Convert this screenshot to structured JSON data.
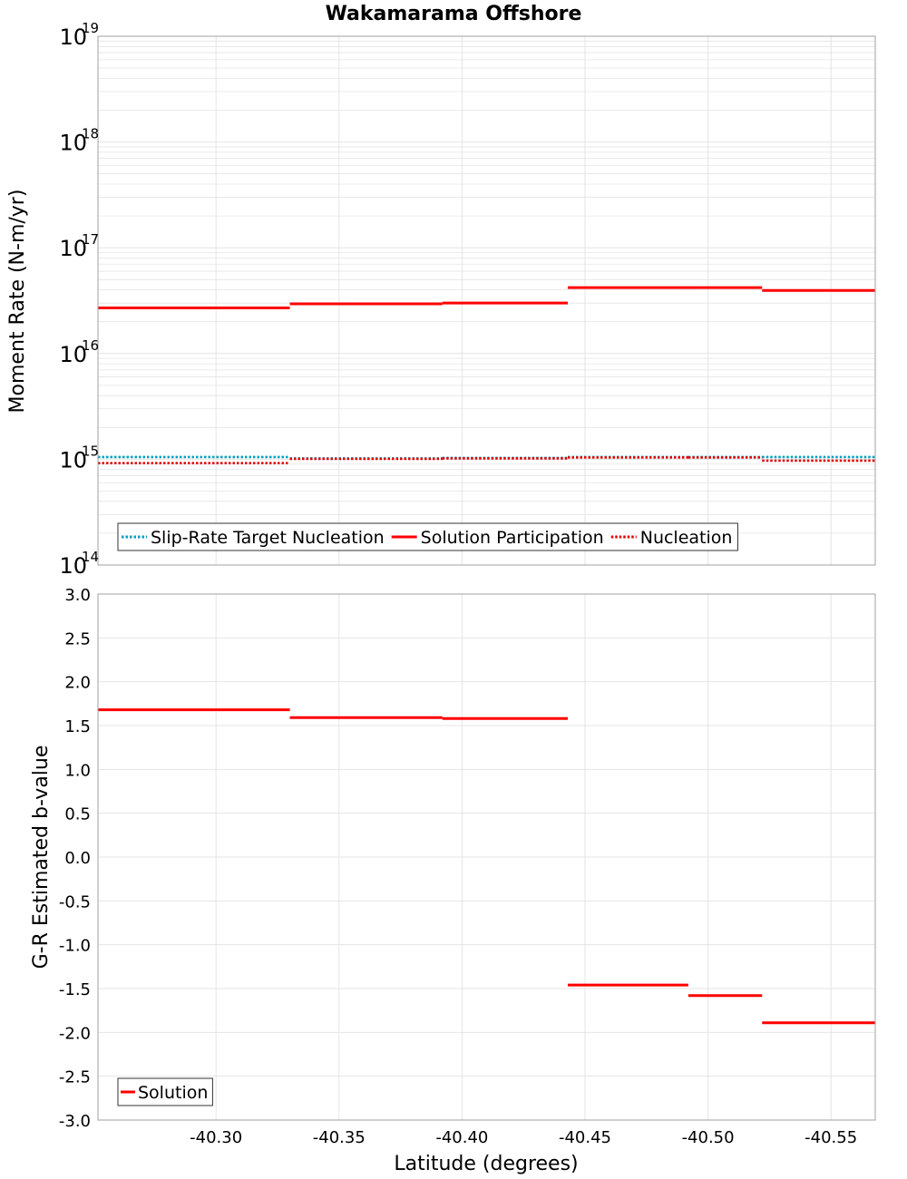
{
  "colors": {
    "solution": "#ff0000",
    "target": "#00a0c0",
    "nucleation": "#e00000",
    "grid": "#e4e4e4",
    "frame": "#a0a0a0"
  },
  "chart_data": [
    {
      "type": "line",
      "title": "Wakamarama Offshore",
      "ylabel": "Moment Rate (N-m/yr)",
      "yscale": "log",
      "ylim": [
        100000000000000.0,
        1e+19
      ],
      "xlim": [
        -40.252,
        -40.568
      ],
      "x_reversed": true,
      "y_ticks": [
        {
          "value": 1e+19,
          "base": "10",
          "exp": "19"
        },
        {
          "value": 1e+18,
          "base": "10",
          "exp": "18"
        },
        {
          "value": 1e+17,
          "base": "10",
          "exp": "17"
        },
        {
          "value": 1e+16,
          "base": "10",
          "exp": "16"
        },
        {
          "value": 1000000000000000.0,
          "base": "10",
          "exp": "15"
        },
        {
          "value": 100000000000000.0,
          "base": "10",
          "exp": "14"
        }
      ],
      "grid": true,
      "legend_position": "bottom-left",
      "series": [
        {
          "name": "Slip-Rate Target Nucleation",
          "style": "dotted",
          "color": "#00a0c0",
          "segments": [
            {
              "x0": -40.252,
              "x1": -40.33,
              "y": 1050000000000000.0
            },
            {
              "x0": -40.33,
              "x1": -40.392,
              "y": 1020000000000000.0
            },
            {
              "x0": -40.392,
              "x1": -40.443,
              "y": 1030000000000000.0
            },
            {
              "x0": -40.443,
              "x1": -40.492,
              "y": 1050000000000000.0
            },
            {
              "x0": -40.492,
              "x1": -40.522,
              "y": 1050000000000000.0
            },
            {
              "x0": -40.522,
              "x1": -40.568,
              "y": 1050000000000000.0
            }
          ]
        },
        {
          "name": "Solution Participation",
          "style": "solid",
          "color": "#ff0000",
          "segments": [
            {
              "x0": -40.252,
              "x1": -40.33,
              "y": 2.7e+16
            },
            {
              "x0": -40.33,
              "x1": -40.392,
              "y": 2.95e+16
            },
            {
              "x0": -40.392,
              "x1": -40.443,
              "y": 3e+16
            },
            {
              "x0": -40.443,
              "x1": -40.492,
              "y": 4.2e+16
            },
            {
              "x0": -40.492,
              "x1": -40.522,
              "y": 4.2e+16
            },
            {
              "x0": -40.522,
              "x1": -40.568,
              "y": 3.95e+16
            }
          ]
        },
        {
          "name": "Nucleation",
          "style": "dotted",
          "color": "#e00000",
          "segments": [
            {
              "x0": -40.252,
              "x1": -40.33,
              "y": 920000000000000.0
            },
            {
              "x0": -40.33,
              "x1": -40.392,
              "y": 1010000000000000.0
            },
            {
              "x0": -40.392,
              "x1": -40.443,
              "y": 1020000000000000.0
            },
            {
              "x0": -40.443,
              "x1": -40.492,
              "y": 1040000000000000.0
            },
            {
              "x0": -40.492,
              "x1": -40.522,
              "y": 1040000000000000.0
            },
            {
              "x0": -40.522,
              "x1": -40.568,
              "y": 970000000000000.0
            }
          ]
        }
      ]
    },
    {
      "type": "line",
      "xlabel": "Latitude (degrees)",
      "ylabel": "G-R Estimated b-value",
      "ylim": [
        -3.0,
        3.0
      ],
      "xlim": [
        -40.252,
        -40.568
      ],
      "x_reversed": true,
      "x_ticks": [
        "-40.30",
        "-40.35",
        "-40.40",
        "-40.45",
        "-40.50",
        "-40.55"
      ],
      "y_ticks": [
        "3.0",
        "2.5",
        "2.0",
        "1.5",
        "1.0",
        "0.5",
        "0.0",
        "-0.5",
        "-1.0",
        "-1.5",
        "-2.0",
        "-2.5",
        "-3.0"
      ],
      "grid": true,
      "legend_position": "bottom-left",
      "series": [
        {
          "name": "Solution",
          "style": "solid",
          "color": "#ff0000",
          "segments": [
            {
              "x0": -40.252,
              "x1": -40.33,
              "y": 1.68
            },
            {
              "x0": -40.33,
              "x1": -40.392,
              "y": 1.59
            },
            {
              "x0": -40.392,
              "x1": -40.443,
              "y": 1.58
            },
            {
              "x0": -40.443,
              "x1": -40.492,
              "y": -1.46
            },
            {
              "x0": -40.492,
              "x1": -40.522,
              "y": -1.58
            },
            {
              "x0": -40.522,
              "x1": -40.568,
              "y": -1.89
            }
          ]
        }
      ]
    }
  ]
}
